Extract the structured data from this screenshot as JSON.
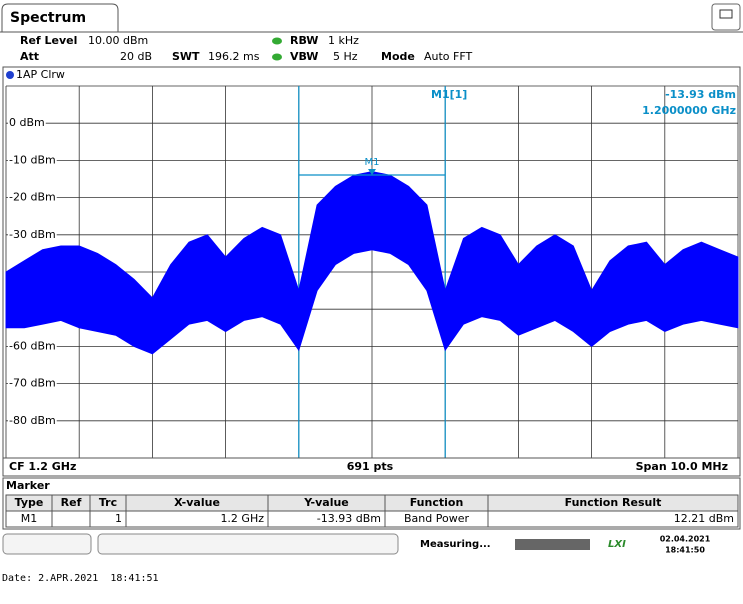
{
  "tab": "Spectrum",
  "settings": {
    "ref_level": {
      "label": "Ref Level",
      "value": "10.00 dBm"
    },
    "att": {
      "label": "Att",
      "value": "20 dB"
    },
    "swt": {
      "label": "SWT",
      "value": "196.2 ms"
    },
    "rbw": {
      "label": "RBW",
      "value": "1 kHz"
    },
    "vbw": {
      "label": "VBW",
      "value": "5 Hz"
    },
    "mode": {
      "label": "Mode",
      "value": "Auto FFT"
    }
  },
  "trace_label": "1AP Clrw",
  "chart_data": {
    "type": "area",
    "color": "#0000ff",
    "grid": true,
    "ylim": [
      -90,
      10
    ],
    "yticks": [
      {
        "value": 0,
        "label": "0 dBm"
      },
      {
        "value": -10,
        "label": "-10 dBm"
      },
      {
        "value": -20,
        "label": "-20 dBm"
      },
      {
        "value": -30,
        "label": "-30 dBm"
      },
      {
        "value": -40,
        "label": "-40 dBm"
      },
      {
        "value": -50,
        "label": "-50 dBm"
      },
      {
        "value": -60,
        "label": "-60 dBm"
      },
      {
        "value": -70,
        "label": "-70 dBm"
      },
      {
        "value": -80,
        "label": "-80 dBm"
      }
    ],
    "xlim": [
      1.195,
      1.205
    ],
    "x": [
      1.195,
      1.19525,
      1.1955,
      1.19575,
      1.196,
      1.19625,
      1.1965,
      1.19675,
      1.197,
      1.19725,
      1.1975,
      1.19775,
      1.198,
      1.19825,
      1.1985,
      1.19875,
      1.199,
      1.19925,
      1.1995,
      1.19975,
      1.2,
      1.20025,
      1.2005,
      1.20075,
      1.201,
      1.20125,
      1.2015,
      1.20175,
      1.202,
      1.20225,
      1.2025,
      1.20275,
      1.203,
      1.20325,
      1.2035,
      1.20375,
      1.204,
      1.20425,
      1.2045,
      1.20475,
      1.205
    ],
    "values_max": [
      -40,
      -37,
      -34,
      -33,
      -33,
      -35,
      -38,
      -42,
      -47,
      -38,
      -32,
      -30,
      -36,
      -31,
      -28,
      -30,
      -45,
      -22,
      -17,
      -14,
      -13,
      -14,
      -17,
      -22,
      -45,
      -31,
      -28,
      -30,
      -38,
      -33,
      -30,
      -33,
      -45,
      -37,
      -33,
      -32,
      -38,
      -34,
      -32,
      -34,
      -36
    ],
    "values_min": [
      -55,
      -55,
      -54,
      -53,
      -55,
      -56,
      -57,
      -60,
      -62,
      -58,
      -54,
      -53,
      -56,
      -53,
      -52,
      -54,
      -61,
      -45,
      -38,
      -35,
      -34,
      -35,
      -38,
      -45,
      -61,
      -54,
      -52,
      -53,
      -57,
      -55,
      -53,
      -56,
      -60,
      -56,
      -54,
      -53,
      -56,
      -54,
      -53,
      -54,
      -55
    ],
    "marker": {
      "name": "M1",
      "readout": "M1[1]",
      "x": 1.2,
      "value": -13.93,
      "value_label": "-13.93 dBm",
      "x_label": "1.2000000 GHz",
      "band": [
        1.199,
        1.201
      ]
    },
    "footer": {
      "cf": "CF 1.2 GHz",
      "points": "691 pts",
      "span": "Span 10.0 MHz"
    }
  },
  "marker_table": {
    "title": "Marker",
    "headers": [
      "Type",
      "Ref",
      "Trc",
      "X-value",
      "Y-value",
      "Function",
      "Function Result"
    ],
    "row": {
      "type": "M1",
      "trc": "1",
      "x_value": "1.2 GHz",
      "y_value": "-13.93 dBm",
      "function": "Band Power",
      "result": "12.21 dBm"
    }
  },
  "status": {
    "text": "Measuring...",
    "logo": "LXI",
    "date": "02.04.2021",
    "time": "18:41:50"
  },
  "date_line": "Date: 2.APR.2021  18:41:51"
}
